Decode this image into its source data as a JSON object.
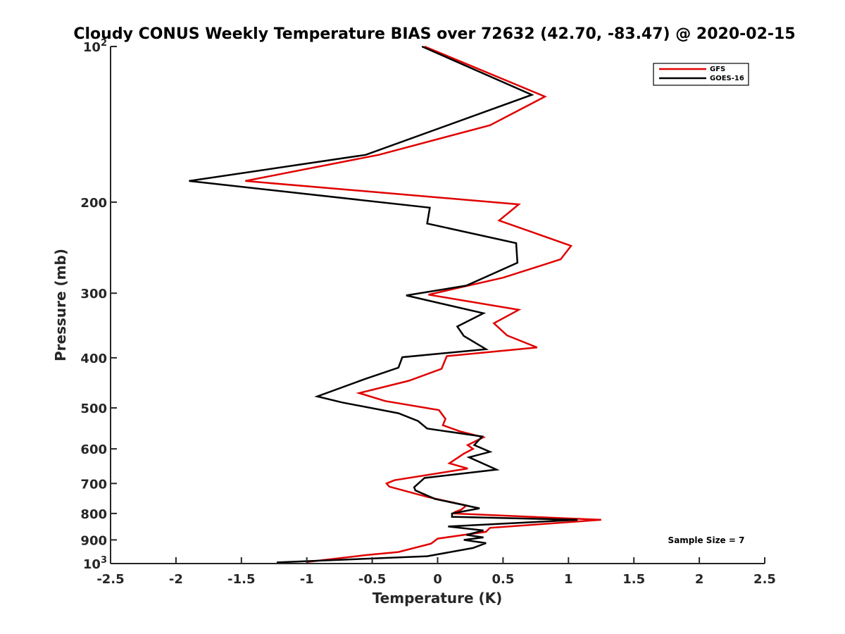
{
  "chart_data": {
    "type": "line",
    "title": "Cloudy CONUS Weekly Temperature BIAS over 72632 (42.70, -83.47) @ 2020-02-15",
    "xlabel": "Temperature (K)",
    "ylabel": "Pressure (mb)",
    "xlim": [
      -2.5,
      2.5
    ],
    "ylim": [
      100,
      1000
    ],
    "y_scale": "log",
    "y_reversed": true,
    "grid": false,
    "legend_position": "top-right",
    "x_ticks": [
      "-2.5",
      "-2",
      "-1.5",
      "-1",
      "-0.5",
      "0",
      "0.5",
      "1",
      "1.5",
      "2",
      "2.5"
    ],
    "x_tick_values": [
      -2.5,
      -2,
      -1.5,
      -1,
      -0.5,
      0,
      0.5,
      1,
      1.5,
      2,
      2.5
    ],
    "y_ticks": [
      {
        "value": 100,
        "base": "10",
        "exp": "2",
        "label": ""
      },
      {
        "value": 200,
        "base": "",
        "exp": "",
        "label": "200"
      },
      {
        "value": 300,
        "base": "",
        "exp": "",
        "label": "300"
      },
      {
        "value": 400,
        "base": "",
        "exp": "",
        "label": "400"
      },
      {
        "value": 500,
        "base": "",
        "exp": "",
        "label": "500"
      },
      {
        "value": 600,
        "base": "",
        "exp": "",
        "label": "600"
      },
      {
        "value": 700,
        "base": "",
        "exp": "",
        "label": "700"
      },
      {
        "value": 800,
        "base": "",
        "exp": "",
        "label": "800"
      },
      {
        "value": 900,
        "base": "",
        "exp": "",
        "label": "900"
      },
      {
        "value": 1000,
        "base": "10",
        "exp": "3",
        "label": ""
      }
    ],
    "annotation": "Sample Size = 7",
    "series": [
      {
        "name": "GFS",
        "color": "#e00000",
        "points": [
          [
            -0.1,
            100
          ],
          [
            0.82,
            125
          ],
          [
            0.4,
            142
          ],
          [
            -0.45,
            162
          ],
          [
            -1.47,
            182
          ],
          [
            0.62,
            202
          ],
          [
            0.47,
            217
          ],
          [
            1.02,
            243
          ],
          [
            0.94,
            258
          ],
          [
            0.5,
            280
          ],
          [
            -0.07,
            302
          ],
          [
            0.62,
            323
          ],
          [
            0.43,
            343
          ],
          [
            0.53,
            362
          ],
          [
            0.76,
            382
          ],
          [
            0.07,
            397
          ],
          [
            0.03,
            420
          ],
          [
            -0.22,
            443
          ],
          [
            -0.6,
            468
          ],
          [
            -0.4,
            485
          ],
          [
            0.01,
            505
          ],
          [
            0.06,
            525
          ],
          [
            0.04,
            540
          ],
          [
            0.17,
            555
          ],
          [
            0.35,
            570
          ],
          [
            0.23,
            590
          ],
          [
            0.27,
            600
          ],
          [
            0.2,
            613
          ],
          [
            0.09,
            640
          ],
          [
            0.23,
            655
          ],
          [
            -0.33,
            690
          ],
          [
            -0.39,
            700
          ],
          [
            -0.37,
            710
          ],
          [
            -0.08,
            743
          ],
          [
            0.22,
            772
          ],
          [
            0.18,
            787
          ],
          [
            0.13,
            795
          ],
          [
            0.12,
            800
          ],
          [
            1.25,
            823
          ],
          [
            0.4,
            853
          ],
          [
            0.37,
            868
          ],
          [
            0.0,
            895
          ],
          [
            -0.05,
            915
          ],
          [
            -0.3,
            950
          ],
          [
            -0.55,
            963
          ],
          [
            -1.0,
            993
          ]
        ]
      },
      {
        "name": "GOES-16",
        "color": "#000000",
        "points": [
          [
            -0.12,
            100
          ],
          [
            0.72,
            124
          ],
          [
            -0.55,
            162
          ],
          [
            -1.9,
            182
          ],
          [
            -0.06,
            205
          ],
          [
            -0.08,
            220
          ],
          [
            0.6,
            240
          ],
          [
            0.61,
            262
          ],
          [
            0.22,
            290
          ],
          [
            -0.24,
            303
          ],
          [
            0.35,
            328
          ],
          [
            0.15,
            348
          ],
          [
            0.2,
            363
          ],
          [
            0.37,
            385
          ],
          [
            -0.27,
            399
          ],
          [
            -0.3,
            418
          ],
          [
            -0.56,
            440
          ],
          [
            -0.92,
            475
          ],
          [
            -0.73,
            488
          ],
          [
            -0.3,
            512
          ],
          [
            -0.15,
            530
          ],
          [
            -0.08,
            548
          ],
          [
            0.34,
            568
          ],
          [
            0.28,
            590
          ],
          [
            0.4,
            608
          ],
          [
            0.24,
            623
          ],
          [
            0.45,
            658
          ],
          [
            -0.1,
            683
          ],
          [
            -0.18,
            712
          ],
          [
            -0.17,
            722
          ],
          [
            -0.02,
            750
          ],
          [
            0.32,
            782
          ],
          [
            0.11,
            800
          ],
          [
            0.11,
            812
          ],
          [
            1.07,
            823
          ],
          [
            0.08,
            848
          ],
          [
            0.35,
            863
          ],
          [
            0.22,
            880
          ],
          [
            0.35,
            890
          ],
          [
            0.2,
            900
          ],
          [
            0.37,
            913
          ],
          [
            0.27,
            933
          ],
          [
            -0.08,
            968
          ],
          [
            -1.23,
            995
          ]
        ]
      }
    ]
  }
}
